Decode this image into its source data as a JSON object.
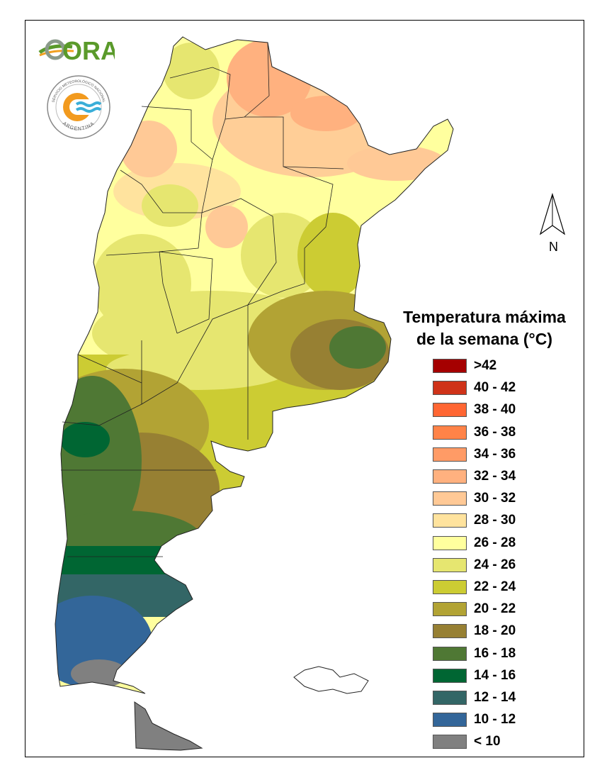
{
  "logos": {
    "ora": {
      "text": "ORA",
      "color_green": "#5a9a2a",
      "color_orange": "#f0a020"
    },
    "smn": {
      "text_top": "SERVICIO METEOROLÓGICO NACIONAL",
      "text_bottom": "ARGENTINA",
      "color_orange": "#f29a1e",
      "color_blue": "#3aaed8"
    }
  },
  "north_arrow": {
    "label": "N",
    "icon": "north-arrow-icon"
  },
  "legend": {
    "title_line1": "Temperatura máxima",
    "title_line2": "de la semana (°C)",
    "items": [
      {
        "label": ">42",
        "color": "#a50000"
      },
      {
        "label": "40 - 42",
        "color": "#cf3319"
      },
      {
        "label": "38 - 40",
        "color": "#ff6633"
      },
      {
        "label": "36 - 38",
        "color": "#ff8348"
      },
      {
        "label": "34 - 36",
        "color": "#ff9b66"
      },
      {
        "label": "32 - 34",
        "color": "#ffb17f"
      },
      {
        "label": "30 - 32",
        "color": "#ffc996"
      },
      {
        "label": "28 - 30",
        "color": "#ffe39e"
      },
      {
        "label": "26 - 28",
        "color": "#ffff9e"
      },
      {
        "label": "24 - 26",
        "color": "#e6e670"
      },
      {
        "label": "22 - 24",
        "color": "#cccc33"
      },
      {
        "label": "20 - 22",
        "color": "#b2a334"
      },
      {
        "label": "18 - 20",
        "color": "#978033"
      },
      {
        "label": "16 - 18",
        "color": "#4f7834"
      },
      {
        "label": "14 - 16",
        "color": "#006633"
      },
      {
        "label": "12 - 14",
        "color": "#336666"
      },
      {
        "label": "10 - 12",
        "color": "#336699"
      },
      {
        "label": "< 10",
        "color": "#808080"
      }
    ]
  }
}
